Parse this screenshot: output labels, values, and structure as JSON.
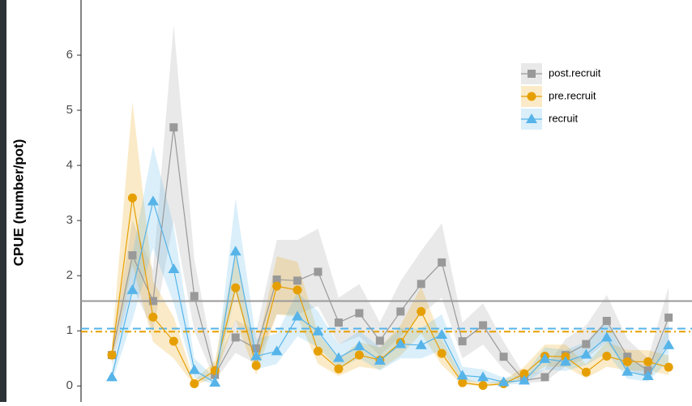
{
  "chart_data": {
    "type": "line",
    "y_label": "CPUE (number/pot)",
    "categories": [
      null,
      null,
      null,
      null,
      null,
      null,
      null,
      null,
      null,
      null,
      null,
      null,
      null,
      null,
      null,
      null,
      null,
      null,
      null,
      null,
      null,
      null,
      null,
      null,
      null,
      null,
      null,
      null
    ],
    "ylim": [
      -0.29,
      7.0
    ],
    "yticks": [
      0,
      1,
      2,
      3,
      4,
      5,
      6
    ],
    "grid": false,
    "legend": "upper right",
    "series": [
      {
        "name": "post.recruit",
        "color": "#999999",
        "marker": "square",
        "hline": 1.54,
        "hline_dash": "none",
        "values": [
          0.56,
          2.37,
          1.54,
          4.69,
          1.63,
          0.2,
          0.88,
          0.68,
          1.93,
          1.91,
          2.07,
          1.15,
          1.32,
          0.82,
          1.35,
          1.85,
          2.24,
          0.81,
          1.1,
          0.53,
          0.1,
          0.16,
          0.56,
          0.76,
          1.18,
          0.53,
          0.28,
          1.24
        ],
        "upper": [
          0.7,
          3.0,
          2.1,
          6.55,
          2.3,
          0.35,
          1.2,
          1.0,
          2.65,
          2.65,
          2.85,
          1.6,
          1.85,
          1.15,
          1.9,
          2.45,
          2.95,
          1.15,
          1.5,
          0.8,
          0.2,
          0.3,
          0.85,
          1.1,
          1.65,
          0.85,
          0.5,
          1.8
        ],
        "lower": [
          0.4,
          1.8,
          1.0,
          3.0,
          1.0,
          0.1,
          0.6,
          0.4,
          1.3,
          1.3,
          1.45,
          0.75,
          0.9,
          0.55,
          0.9,
          1.3,
          1.6,
          0.5,
          0.75,
          0.3,
          0.05,
          0.08,
          0.35,
          0.5,
          0.8,
          0.3,
          0.15,
          0.8
        ]
      },
      {
        "name": "pre.recruit",
        "color": "#E69F00",
        "marker": "circle",
        "hline": 0.985,
        "hline_dash": "8 4 2 4",
        "values": [
          0.56,
          3.41,
          1.25,
          0.81,
          0.04,
          0.28,
          1.78,
          0.37,
          1.81,
          1.74,
          0.63,
          0.31,
          0.56,
          0.47,
          0.79,
          1.35,
          0.59,
          0.06,
          0.01,
          0.04,
          0.22,
          0.54,
          0.53,
          0.25,
          0.54,
          0.44,
          0.44,
          0.34
        ],
        "upper": [
          0.75,
          5.15,
          1.9,
          1.25,
          0.1,
          0.45,
          2.45,
          0.6,
          2.35,
          2.25,
          0.95,
          0.5,
          0.8,
          0.7,
          1.1,
          1.8,
          0.85,
          0.15,
          0.05,
          0.1,
          0.35,
          0.75,
          0.75,
          0.4,
          0.8,
          0.65,
          0.65,
          0.55
        ],
        "lower": [
          0.4,
          2.2,
          0.8,
          0.5,
          0.01,
          0.15,
          1.2,
          0.2,
          1.3,
          1.25,
          0.4,
          0.18,
          0.35,
          0.3,
          0.55,
          0.95,
          0.38,
          0.02,
          0.0,
          0.01,
          0.12,
          0.35,
          0.35,
          0.14,
          0.35,
          0.28,
          0.28,
          0.2
        ]
      },
      {
        "name": "recruit",
        "color": "#56B4E9",
        "marker": "triangle",
        "hline": 1.04,
        "hline_dash": "10 6",
        "values": [
          0.16,
          1.74,
          3.35,
          2.12,
          0.29,
          0.06,
          2.44,
          0.54,
          0.63,
          1.26,
          0.99,
          0.51,
          0.72,
          0.46,
          0.76,
          0.74,
          0.93,
          0.19,
          0.16,
          0.07,
          0.1,
          0.49,
          0.44,
          0.57,
          0.88,
          0.26,
          0.18,
          0.74
        ],
        "upper": [
          0.3,
          2.4,
          4.35,
          2.9,
          0.5,
          0.15,
          3.4,
          0.85,
          0.95,
          1.7,
          1.35,
          0.75,
          1.0,
          0.7,
          1.05,
          1.05,
          1.3,
          0.35,
          0.3,
          0.15,
          0.2,
          0.7,
          0.65,
          0.8,
          1.2,
          0.45,
          0.35,
          1.1
        ],
        "lower": [
          0.06,
          1.2,
          2.5,
          1.5,
          0.15,
          0.02,
          1.7,
          0.3,
          0.4,
          0.9,
          0.7,
          0.32,
          0.5,
          0.28,
          0.5,
          0.5,
          0.65,
          0.08,
          0.07,
          0.02,
          0.04,
          0.3,
          0.27,
          0.38,
          0.6,
          0.13,
          0.08,
          0.45
        ]
      }
    ]
  }
}
